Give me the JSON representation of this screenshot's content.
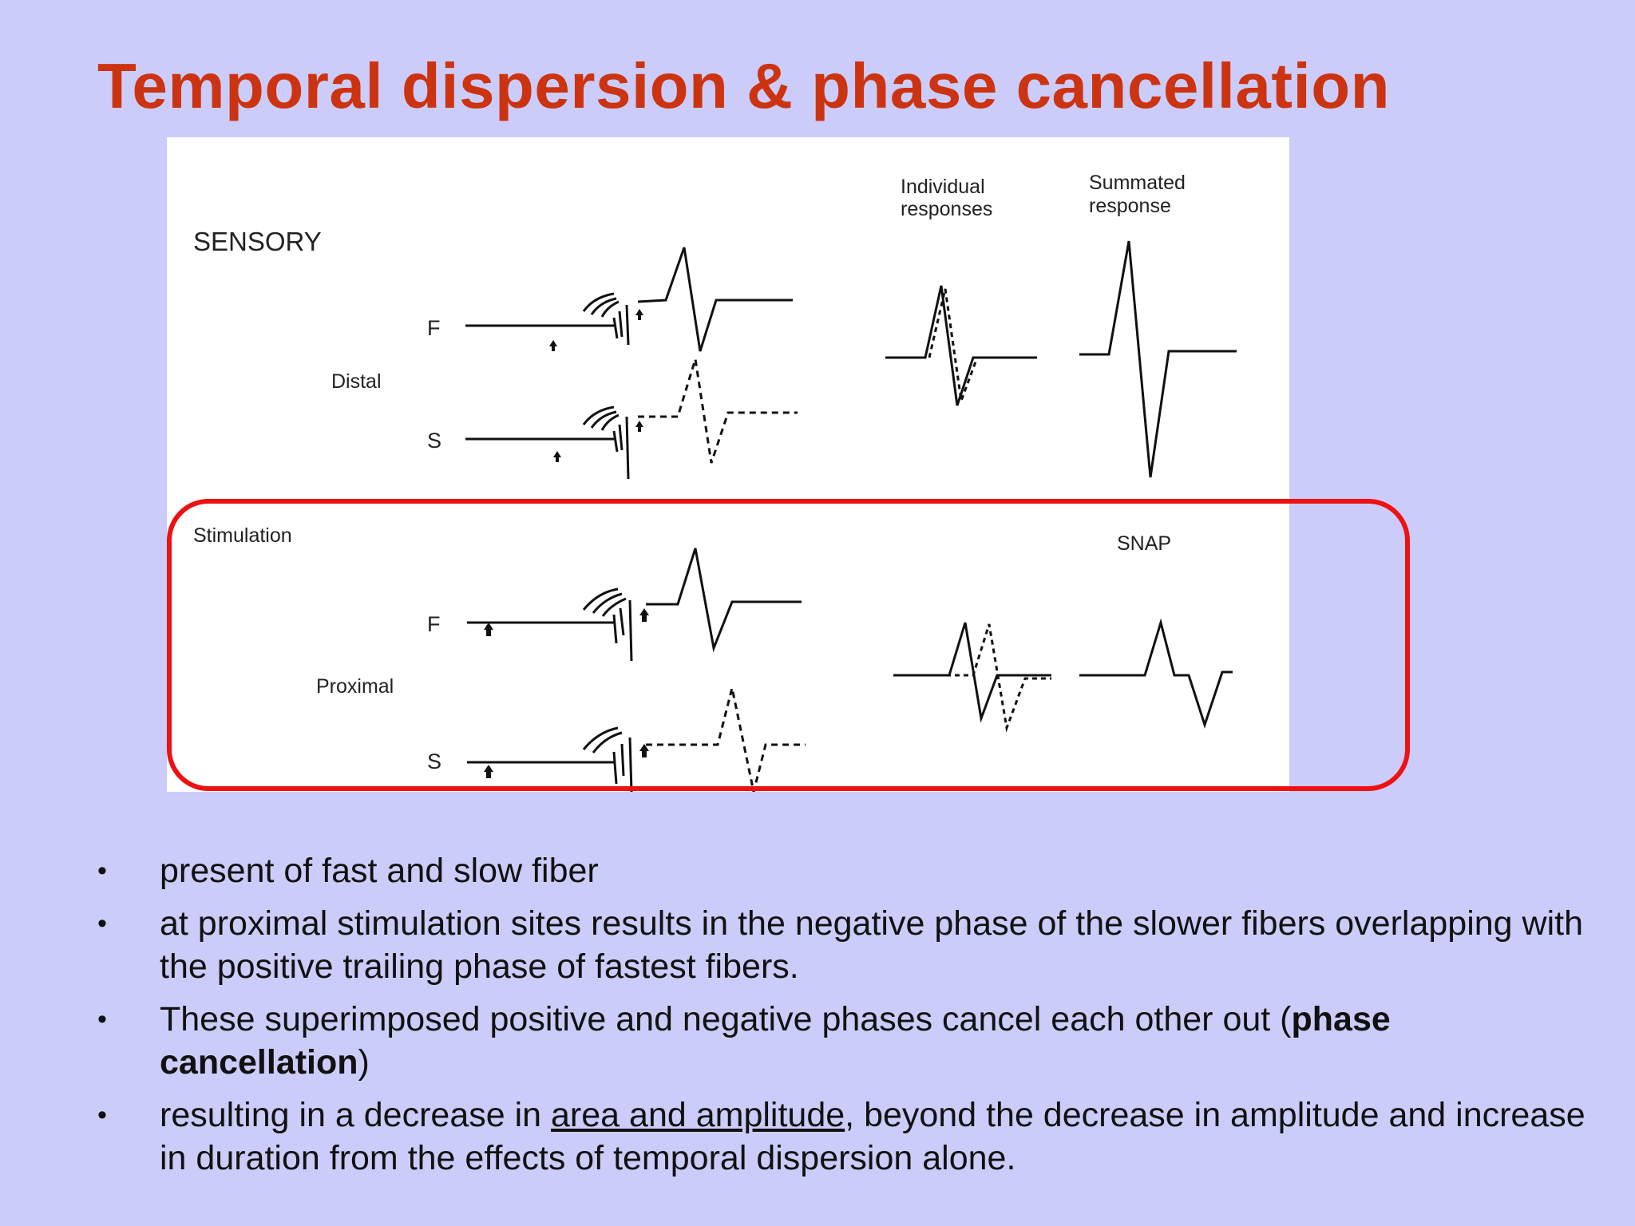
{
  "title": "Temporal dispersion & phase cancellation",
  "figure": {
    "labels": {
      "sensory": "SENSORY",
      "individual_1": "Individual",
      "individual_2": "responses",
      "summated_1": "Summated",
      "summated_2": "response",
      "distal": "Distal",
      "stimulation": "Stimulation",
      "proximal": "Proximal",
      "snap": "SNAP",
      "f_distal": "F",
      "s_distal": "S",
      "f_proximal": "F",
      "s_proximal": "S"
    },
    "highlight_color": "#ee1111"
  },
  "bullets": [
    {
      "text": "present of fast and slow fiber"
    },
    {
      "text": "at proximal stimulation sites results in the negative phase of the slower fibers overlapping with the positive trailing phase of fastest fibers."
    },
    {
      "pre": "These superimposed positive and negative phases cancel each other out (",
      "bold": "phase cancellation",
      "post": ")"
    },
    {
      "pre": "resulting in a decrease in ",
      "underline": "area and amplitude",
      "post": ", beyond the decrease in amplitude and increase in duration from the effects of temporal dispersion alone."
    }
  ],
  "colors": {
    "background": "#ccccfa",
    "title": "#cc3311"
  }
}
